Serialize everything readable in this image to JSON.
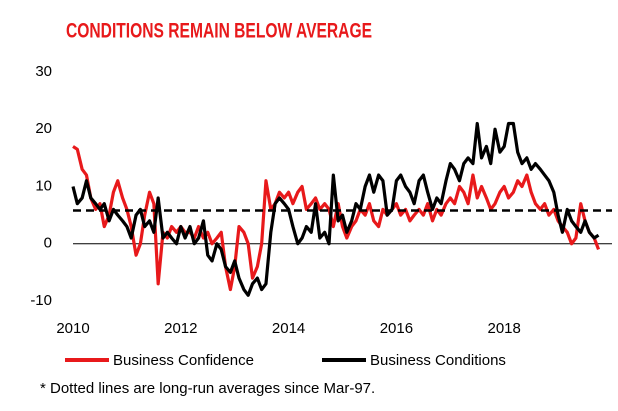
{
  "chart_data": {
    "type": "line",
    "title": "CONDITIONS REMAIN BELOW AVERAGE",
    "footnote": "* Dotted lines are long-run averages since Mar-97.",
    "x": [
      2010,
      2010.08,
      2010.17,
      2010.25,
      2010.33,
      2010.42,
      2010.5,
      2010.58,
      2010.67,
      2010.75,
      2010.83,
      2010.92,
      2011,
      2011.08,
      2011.17,
      2011.25,
      2011.33,
      2011.42,
      2011.5,
      2011.58,
      2011.67,
      2011.75,
      2011.83,
      2011.92,
      2012,
      2012.08,
      2012.17,
      2012.25,
      2012.33,
      2012.42,
      2012.5,
      2012.58,
      2012.67,
      2012.75,
      2012.83,
      2012.92,
      2013,
      2013.08,
      2013.17,
      2013.25,
      2013.33,
      2013.42,
      2013.5,
      2013.58,
      2013.67,
      2013.75,
      2013.83,
      2013.92,
      2014,
      2014.08,
      2014.17,
      2014.25,
      2014.33,
      2014.42,
      2014.5,
      2014.58,
      2014.67,
      2014.75,
      2014.83,
      2014.92,
      2015,
      2015.08,
      2015.17,
      2015.25,
      2015.33,
      2015.42,
      2015.5,
      2015.58,
      2015.67,
      2015.75,
      2015.83,
      2015.92,
      2016,
      2016.08,
      2016.17,
      2016.25,
      2016.33,
      2016.42,
      2016.5,
      2016.58,
      2016.67,
      2016.75,
      2016.83,
      2016.92,
      2017,
      2017.08,
      2017.17,
      2017.25,
      2017.33,
      2017.42,
      2017.5,
      2017.58,
      2017.67,
      2017.75,
      2017.83,
      2017.92,
      2018,
      2018.08,
      2018.17,
      2018.25,
      2018.33,
      2018.42,
      2018.5,
      2018.58,
      2018.67,
      2018.75,
      2018.83,
      2018.92,
      2019,
      2019.08,
      2019.17,
      2019.25,
      2019.33,
      2019.42,
      2019.5,
      2019.58,
      2019.67,
      2019.75
    ],
    "series": [
      {
        "name": "Business Confidence",
        "color": "#e8191b",
        "values": [
          17,
          16.5,
          13,
          12,
          8,
          6,
          7,
          3,
          5,
          9,
          11,
          8,
          6,
          3,
          -2,
          0,
          5,
          9,
          7,
          -7,
          2,
          1,
          3,
          2,
          3,
          2,
          2,
          1,
          3,
          1,
          2,
          0,
          1,
          2,
          -4,
          -8,
          -4,
          3,
          2,
          0,
          -6,
          -4,
          0,
          11,
          6,
          7,
          9,
          8,
          9,
          7,
          9,
          10,
          6,
          7,
          8,
          6,
          7,
          6,
          3,
          7,
          3,
          1,
          3,
          4,
          6,
          5,
          7,
          4,
          3,
          6,
          5,
          6,
          7,
          5,
          6,
          4,
          5,
          6,
          5,
          7,
          4,
          6,
          5,
          7,
          8,
          7,
          10,
          9,
          7,
          12,
          8,
          10,
          8,
          6,
          7,
          9,
          10,
          8,
          9,
          11,
          10,
          12,
          9,
          7,
          6,
          7,
          5,
          6,
          4,
          3,
          2,
          0,
          1,
          7,
          4,
          2,
          1,
          -1
        ]
      },
      {
        "name": "Business Conditions",
        "color": "#000000",
        "values": [
          10,
          7,
          8,
          11,
          8,
          7,
          6,
          7,
          4,
          6,
          5,
          4,
          3,
          1,
          5,
          6,
          3,
          4,
          2,
          8,
          1,
          2,
          1,
          0,
          3,
          1,
          3,
          0,
          1,
          4,
          -2,
          -3,
          0,
          -1,
          -4,
          -5,
          -3,
          -6,
          -8,
          -9,
          -7,
          -6,
          -8,
          -7,
          2,
          7,
          8,
          7,
          6,
          3,
          0,
          1,
          3,
          2,
          7,
          1,
          2,
          0,
          12,
          4,
          5,
          2,
          4,
          7,
          6,
          10,
          12,
          9,
          12,
          11,
          5,
          6,
          11,
          12,
          10,
          9,
          7,
          11,
          12,
          9,
          6,
          8,
          7,
          11,
          14,
          13,
          11,
          14,
          15,
          14,
          21,
          15,
          17,
          14,
          20,
          16,
          17,
          21,
          21,
          16,
          14,
          15,
          13,
          14,
          13,
          12,
          11,
          9,
          5,
          2,
          6,
          4,
          3,
          2,
          4,
          2,
          1,
          1.5
        ]
      }
    ],
    "hlines": [
      5.8
    ],
    "zero_line": true,
    "xlim": [
      2010,
      2020
    ],
    "xticks": [
      2010,
      2012,
      2014,
      2016,
      2018
    ],
    "ylim": [
      -10,
      30
    ],
    "yticks": [
      -10,
      0,
      10,
      20,
      30
    ]
  }
}
